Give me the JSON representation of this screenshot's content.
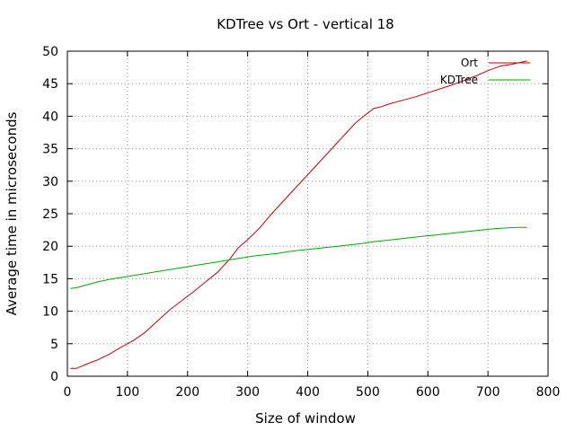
{
  "chart_data": {
    "type": "line",
    "title": "KDTree vs Ort - vertical 18",
    "xlabel": "Size of window",
    "ylabel": "Average time in microseconds",
    "xlim": [
      0,
      800
    ],
    "ylim": [
      0,
      50
    ],
    "x_ticks": [
      0,
      100,
      200,
      300,
      400,
      500,
      600,
      700,
      800
    ],
    "y_ticks": [
      0,
      5,
      10,
      15,
      20,
      25,
      30,
      35,
      40,
      45,
      50
    ],
    "grid": true,
    "grid_style": "dotted",
    "legend_position": "top-right",
    "series": [
      {
        "name": "Ort",
        "color": "#cc0000",
        "points": [
          [
            5,
            1.2
          ],
          [
            15,
            1.2
          ],
          [
            30,
            1.8
          ],
          [
            50,
            2.5
          ],
          [
            70,
            3.4
          ],
          [
            90,
            4.5
          ],
          [
            110,
            5.5
          ],
          [
            130,
            6.8
          ],
          [
            150,
            8.5
          ],
          [
            170,
            10.2
          ],
          [
            190,
            11.6
          ],
          [
            210,
            13.0
          ],
          [
            230,
            14.5
          ],
          [
            250,
            16.0
          ],
          [
            270,
            18.0
          ],
          [
            285,
            19.8
          ],
          [
            300,
            21.0
          ],
          [
            320,
            22.8
          ],
          [
            340,
            25.0
          ],
          [
            360,
            27.0
          ],
          [
            380,
            29.0
          ],
          [
            400,
            31.0
          ],
          [
            420,
            33.0
          ],
          [
            440,
            35.0
          ],
          [
            460,
            37.0
          ],
          [
            480,
            39.0
          ],
          [
            500,
            40.5
          ],
          [
            510,
            41.2
          ],
          [
            520,
            41.4
          ],
          [
            540,
            42.0
          ],
          [
            560,
            42.5
          ],
          [
            580,
            43.0
          ],
          [
            600,
            43.6
          ],
          [
            620,
            44.2
          ],
          [
            640,
            44.8
          ],
          [
            660,
            45.5
          ],
          [
            680,
            46.2
          ],
          [
            700,
            47.0
          ],
          [
            720,
            47.7
          ],
          [
            740,
            48.0
          ],
          [
            760,
            48.4
          ],
          [
            765,
            48.5
          ]
        ]
      },
      {
        "name": "KDTree",
        "color": "#00aa00",
        "points": [
          [
            5,
            13.5
          ],
          [
            15,
            13.6
          ],
          [
            30,
            14.0
          ],
          [
            50,
            14.5
          ],
          [
            70,
            14.9
          ],
          [
            90,
            15.2
          ],
          [
            110,
            15.5
          ],
          [
            130,
            15.8
          ],
          [
            150,
            16.1
          ],
          [
            170,
            16.4
          ],
          [
            190,
            16.7
          ],
          [
            210,
            17.0
          ],
          [
            230,
            17.3
          ],
          [
            250,
            17.6
          ],
          [
            270,
            17.9
          ],
          [
            290,
            18.2
          ],
          [
            310,
            18.5
          ],
          [
            330,
            18.7
          ],
          [
            350,
            18.9
          ],
          [
            370,
            19.2
          ],
          [
            390,
            19.4
          ],
          [
            410,
            19.6
          ],
          [
            430,
            19.8
          ],
          [
            450,
            20.0
          ],
          [
            470,
            20.2
          ],
          [
            490,
            20.4
          ],
          [
            510,
            20.7
          ],
          [
            530,
            20.9
          ],
          [
            550,
            21.1
          ],
          [
            570,
            21.3
          ],
          [
            590,
            21.5
          ],
          [
            610,
            21.7
          ],
          [
            630,
            21.9
          ],
          [
            650,
            22.1
          ],
          [
            670,
            22.3
          ],
          [
            690,
            22.5
          ],
          [
            710,
            22.7
          ],
          [
            730,
            22.8
          ],
          [
            750,
            22.9
          ],
          [
            765,
            22.9
          ]
        ]
      }
    ]
  }
}
